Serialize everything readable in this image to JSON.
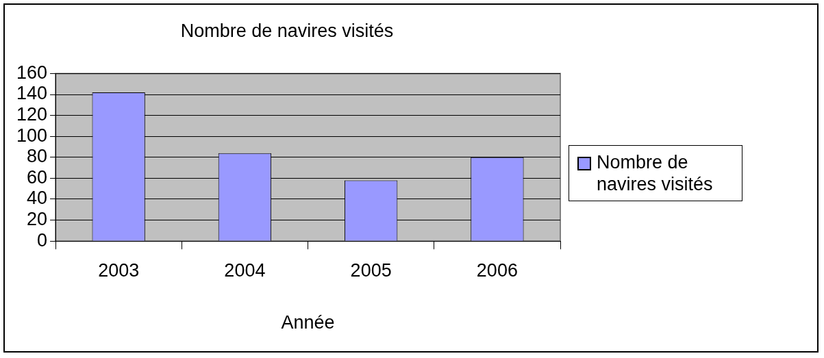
{
  "chart_data": {
    "type": "bar",
    "title": "Nombre de navires visités",
    "xlabel": "Année",
    "categories": [
      "2003",
      "2004",
      "2005",
      "2006"
    ],
    "series": [
      {
        "name": "Nombre de navires visités",
        "color": "#9999ff",
        "values": [
          142,
          84,
          58,
          80
        ]
      }
    ],
    "ylim": [
      0,
      160
    ],
    "yticks": [
      0,
      20,
      40,
      60,
      80,
      100,
      120,
      140,
      160
    ],
    "grid": "y",
    "legend": "right"
  }
}
